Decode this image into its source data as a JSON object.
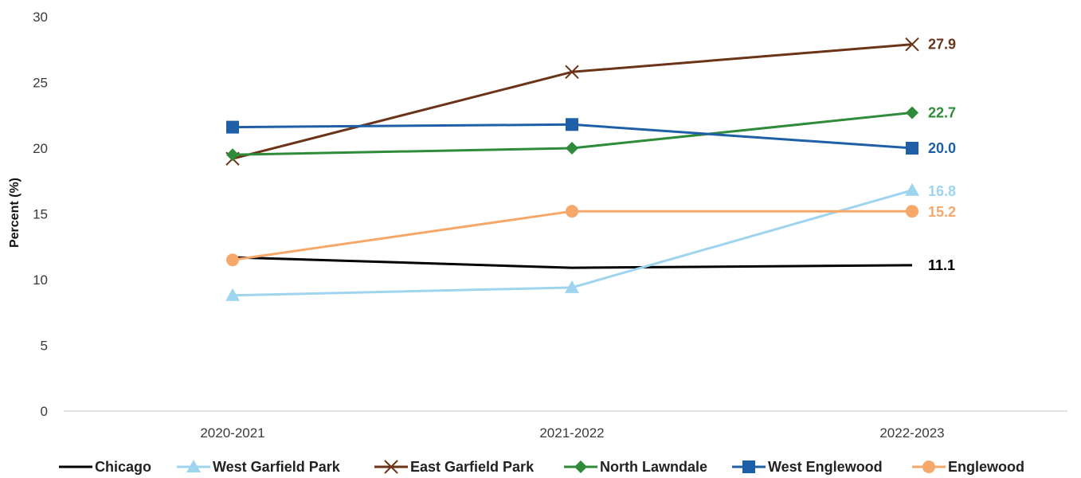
{
  "chart_data": {
    "type": "line",
    "title": "",
    "xlabel": "",
    "ylabel": "Percent (%)",
    "ylim": [
      0,
      30
    ],
    "yticks": [
      "0",
      "5",
      "10",
      "15",
      "20",
      "25",
      "30"
    ],
    "categories": [
      "2020-2021",
      "2021-2022",
      "2022-2023"
    ],
    "grid": false,
    "legend_position": "bottom",
    "series": [
      {
        "name": "Chicago",
        "values": [
          11.7,
          10.9,
          11.1
        ],
        "color": "#000000",
        "marker": "none",
        "end_label": "11.1"
      },
      {
        "name": "West Garfield Park",
        "values": [
          8.8,
          9.4,
          16.8
        ],
        "color": "#9fd4ee",
        "marker": "triangle",
        "end_label": "16.8"
      },
      {
        "name": "East Garfield Park",
        "values": [
          19.2,
          25.8,
          27.9
        ],
        "color": "#6b3318",
        "marker": "x",
        "end_label": "27.9"
      },
      {
        "name": "North Lawndale",
        "values": [
          19.5,
          20.0,
          22.7
        ],
        "color": "#2e8b3a",
        "marker": "diamond",
        "end_label": "22.7"
      },
      {
        "name": "West Englewood",
        "values": [
          21.6,
          21.8,
          20.0
        ],
        "color": "#1f5fa8",
        "marker": "square",
        "end_label": "20.0"
      },
      {
        "name": "Englewood",
        "values": [
          11.5,
          15.2,
          15.2
        ],
        "color": "#f5a86a",
        "marker": "circle",
        "end_label": "15.2"
      }
    ]
  }
}
